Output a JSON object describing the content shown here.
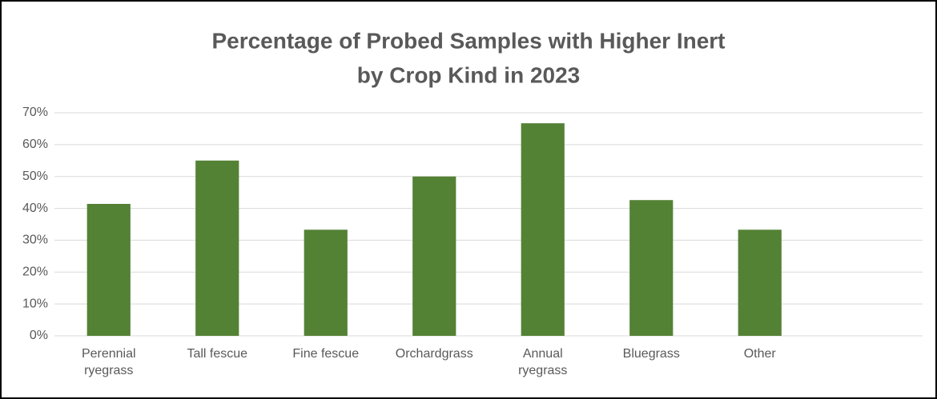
{
  "chart_data": {
    "type": "bar",
    "title": [
      "Percentage of Probed Samples with Higher Inert",
      "by Crop Kind in 2023"
    ],
    "categories": [
      "Perennial ryegrass",
      "Tall fescue",
      "Fine fescue",
      "Orchardgrass",
      "Annual ryegrass",
      "Bluegrass",
      "Other",
      null
    ],
    "values": [
      41.4,
      55,
      33.3,
      50,
      66.7,
      42.6,
      33.3,
      null
    ],
    "color": "#548235",
    "ylim": [
      0,
      70
    ],
    "yticks": [
      {
        "value": 0,
        "label": "0%"
      },
      {
        "value": 10,
        "label": "10%"
      },
      {
        "value": 20,
        "label": "20%"
      },
      {
        "value": 30,
        "label": "30%"
      },
      {
        "value": 40,
        "label": "40%"
      },
      {
        "value": 50,
        "label": "50%"
      },
      {
        "value": 60,
        "label": "60%"
      },
      {
        "value": 70,
        "label": "70%"
      }
    ],
    "grid": true
  }
}
